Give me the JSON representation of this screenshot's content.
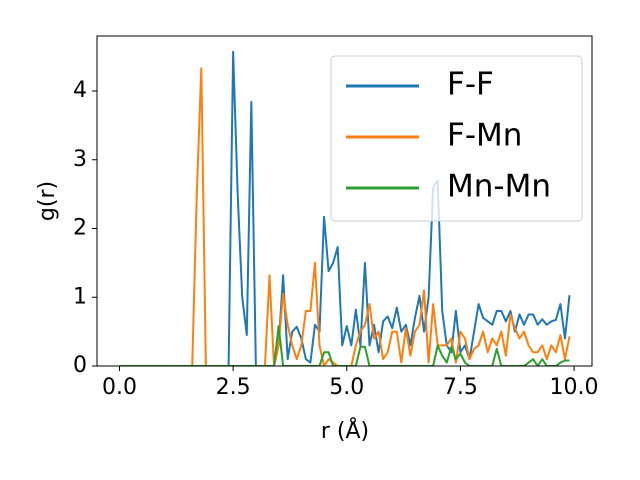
{
  "chart_data": {
    "type": "line",
    "xlabel": "r (Å)",
    "ylabel": "g(r)",
    "x": [
      0,
      0.1,
      0.2,
      0.3,
      0.4,
      0.5,
      0.6,
      0.7,
      0.8,
      0.9,
      1,
      1.1,
      1.2,
      1.3,
      1.4,
      1.5,
      1.6,
      1.7,
      1.8,
      1.9,
      2,
      2.1,
      2.2,
      2.3,
      2.4,
      2.5,
      2.6,
      2.7,
      2.8,
      2.9,
      3,
      3.1,
      3.2,
      3.3,
      3.4,
      3.5,
      3.6,
      3.7,
      3.8,
      3.9,
      4,
      4.1,
      4.2,
      4.3,
      4.4,
      4.5,
      4.6,
      4.7,
      4.8,
      4.9,
      5,
      5.1,
      5.2,
      5.3,
      5.4,
      5.5,
      5.6,
      5.7,
      5.8,
      5.9,
      6,
      6.1,
      6.2,
      6.3,
      6.4,
      6.5,
      6.6,
      6.7,
      6.8,
      6.9,
      7,
      7.1,
      7.2,
      7.3,
      7.4,
      7.5,
      7.6,
      7.7,
      7.8,
      7.9,
      8,
      8.1,
      8.2,
      8.3,
      8.4,
      8.5,
      8.6,
      8.7,
      8.8,
      8.9,
      9,
      9.1,
      9.2,
      9.3,
      9.4,
      9.5,
      9.6,
      9.7,
      9.8,
      9.9
    ],
    "series": [
      {
        "name": "F-F",
        "color": "#1f77b4",
        "values": [
          0,
          0,
          0,
          0,
          0,
          0,
          0,
          0,
          0,
          0,
          0,
          0,
          0,
          0,
          0,
          0,
          0,
          0,
          0,
          0,
          0,
          0,
          0,
          0,
          0,
          4.57,
          2.5,
          1.0,
          0.45,
          3.84,
          0,
          0,
          0,
          0,
          0,
          0.3,
          1.32,
          0.1,
          0.5,
          0.57,
          0.4,
          0.1,
          0.05,
          0.6,
          0.5,
          2.17,
          1.38,
          1.5,
          1.73,
          0.3,
          0.58,
          0.3,
          0.82,
          0.3,
          1.5,
          0.3,
          0.6,
          0.2,
          0.65,
          0.72,
          0.55,
          0.85,
          0.5,
          0.6,
          0.3,
          0.7,
          1.02,
          0.5,
          1.0,
          2.6,
          2.7,
          0.8,
          0.3,
          0.2,
          0.8,
          0.2,
          0.3,
          0.1,
          0.5,
          0.9,
          0.7,
          0.65,
          0.6,
          0.8,
          0.8,
          0.65,
          0.8,
          0.5,
          0.75,
          0.6,
          0.75,
          0.75,
          0.6,
          0.68,
          0.6,
          0.65,
          0.67,
          0.9,
          0.4,
          1.03
        ]
      },
      {
        "name": "F-Mn",
        "color": "#ff7f0e",
        "values": [
          0,
          0,
          0,
          0,
          0,
          0,
          0,
          0,
          0,
          0,
          0,
          0,
          0,
          0,
          0,
          0,
          0,
          2.5,
          4.33,
          0,
          0,
          0,
          0,
          0,
          0,
          0,
          0,
          0,
          0,
          0,
          0,
          0,
          0,
          1.32,
          0,
          0.3,
          1.05,
          0.6,
          0.3,
          0.1,
          0.3,
          0.8,
          0.8,
          1.5,
          0.3,
          0,
          0.1,
          0.05,
          0,
          0,
          0,
          0,
          0.3,
          0.5,
          0.6,
          0.9,
          0.4,
          0.5,
          0.1,
          0.2,
          0.5,
          0.5,
          0.05,
          0.55,
          0.15,
          0.5,
          0.6,
          1.1,
          0.05,
          0.9,
          0.3,
          0.3,
          0.3,
          0.4,
          0.05,
          0.5,
          0.4,
          0.1,
          0.25,
          0.3,
          0.5,
          0.2,
          0.4,
          0.3,
          0.5,
          0.15,
          0.75,
          0.55,
          0.4,
          0.5,
          0.3,
          0.2,
          0.2,
          0.3,
          0.1,
          0.3,
          0.2,
          0.45,
          0.1,
          0.43
        ]
      },
      {
        "name": "Mn-Mn",
        "color": "#2ca02c",
        "values": [
          0,
          0,
          0,
          0,
          0,
          0,
          0,
          0,
          0,
          0,
          0,
          0,
          0,
          0,
          0,
          0,
          0,
          0,
          0,
          0,
          0,
          0,
          0,
          0,
          0,
          0,
          0,
          0,
          0,
          0,
          0,
          0,
          0,
          0,
          0,
          0.58,
          0,
          0,
          0,
          0,
          0,
          0,
          0,
          0,
          0,
          0.2,
          0.2,
          0,
          0,
          0,
          0,
          0,
          0,
          0.28,
          0.28,
          0,
          0,
          0,
          0,
          0,
          0,
          0,
          0,
          0,
          0,
          0,
          0,
          0,
          0,
          0,
          0.3,
          0.15,
          0.05,
          0.28,
          0.1,
          0.18,
          0.05,
          0,
          0,
          0,
          0,
          0,
          0,
          0.25,
          0,
          0,
          0,
          0,
          0,
          0,
          0.05,
          0.1,
          0,
          0.1,
          0,
          0,
          0,
          0.05,
          0.08,
          0.08
        ]
      }
    ],
    "xlim": [
      -0.495,
      10.395
    ],
    "xticks": [
      {
        "value": 0,
        "label": "0.0"
      },
      2.5,
      {
        "value": 5,
        "label": "5.0"
      },
      7.5,
      {
        "value": 10,
        "label": "10.0"
      }
    ],
    "ylim": [
      0,
      4.8
    ],
    "yticks": [
      0,
      1,
      2,
      3,
      4
    ],
    "grid": false,
    "legend": "upper right"
  }
}
